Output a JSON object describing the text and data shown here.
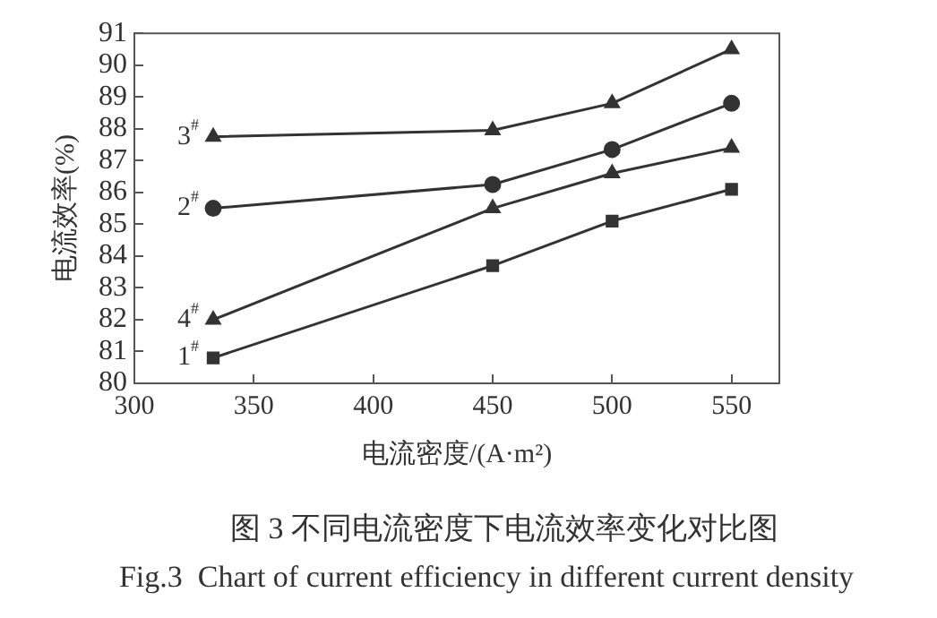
{
  "chart_data": {
    "type": "line",
    "xlabel": "电流密度/(A·m²)",
    "ylabel": "电流效率(%)",
    "x": [
      333,
      450,
      500,
      550
    ],
    "series": [
      {
        "name": "1$^{#}$",
        "color": "#333333",
        "marker": "square",
        "values": [
          80.8,
          83.7,
          85.1,
          86.1
        ]
      },
      {
        "name": "2$^{#}$",
        "color": "#333333",
        "marker": "circle",
        "values": [
          85.5,
          86.25,
          87.35,
          88.8
        ]
      },
      {
        "name": "3$^{#}$",
        "color": "#333333",
        "marker": "triangle",
        "values": [
          87.75,
          87.95,
          88.8,
          90.5
        ]
      },
      {
        "name": "4$^{#}$",
        "color": "#333333",
        "marker": "triangle",
        "values": [
          82.0,
          85.5,
          86.6,
          87.4
        ]
      }
    ],
    "xlim": [
      300,
      570
    ],
    "xticks": [
      300,
      350,
      400,
      450,
      500,
      550
    ],
    "ylim": [
      80,
      91
    ],
    "yticks": [
      80,
      81,
      82,
      83,
      84,
      85,
      86,
      87,
      88,
      89,
      90,
      91
    ],
    "grid": false,
    "legend": false,
    "line_style": "solid",
    "annotations": [
      "图 3 不同电流密度下电流效率变化对比图",
      "Fig.3  Chart of current efficiency in different current density"
    ]
  }
}
